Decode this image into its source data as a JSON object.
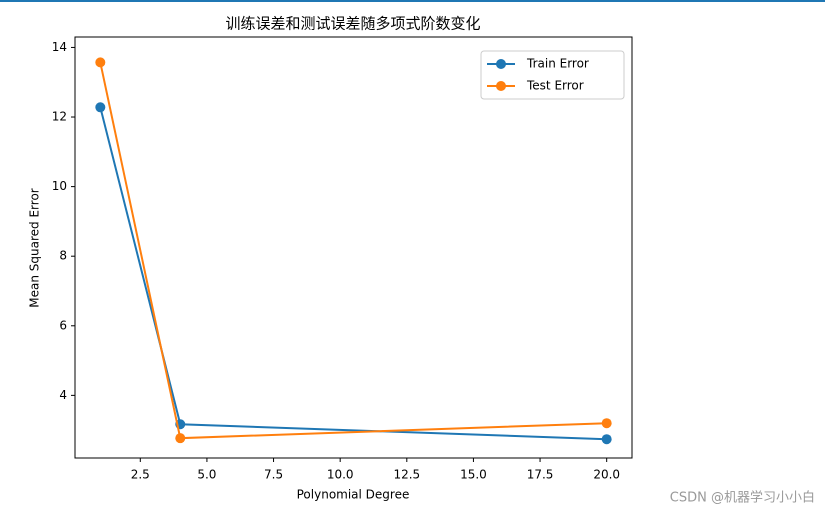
{
  "chart_data": {
    "type": "line",
    "title": "训练误差和测试误差随多项式阶数变化",
    "x_label": "Polynomial Degree",
    "y_label": "Mean Squared Error",
    "x": [
      1,
      4,
      20
    ],
    "series": [
      {
        "name": "Train Error",
        "color": "#1f77b4",
        "values": [
          12.28,
          3.17,
          2.74
        ]
      },
      {
        "name": "Test Error",
        "color": "#ff7f0e",
        "values": [
          13.57,
          2.77,
          3.2
        ]
      }
    ],
    "xlim": [
      0.05,
      20.95
    ],
    "xticks": [
      2.5,
      {
        "value": 5,
        "label": "5.0"
      },
      7.5,
      {
        "value": 10,
        "label": "10.0"
      },
      12.5,
      {
        "value": 15,
        "label": "15.0"
      },
      17.5,
      {
        "value": 20,
        "label": "20.0"
      }
    ],
    "ylim": [
      2.2,
      14.3
    ],
    "yticks": [
      4,
      6,
      8,
      10,
      12,
      14
    ],
    "grid": false,
    "legend": "upper right",
    "watermark": "CSDN @机器学习小小白"
  }
}
